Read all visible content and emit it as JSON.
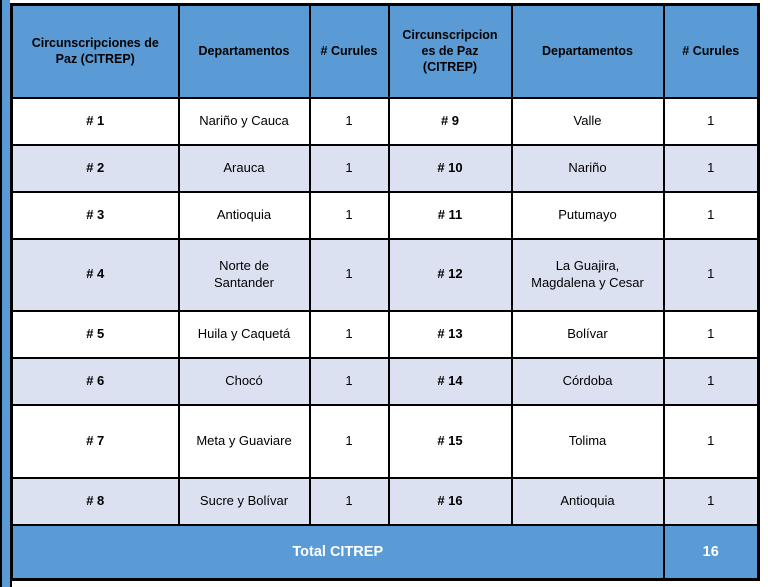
{
  "colors": {
    "header_blue": "#5B9BD5",
    "banded_row": "#DCE1F2",
    "border": "#000000",
    "total_text": "#FFFFFF"
  },
  "table": {
    "headers": [
      "Circunscripciones de Paz (CITREP)",
      "Departamentos",
      "# Curules",
      "Circunscripciones de Paz (CITREP)",
      "Departamentos",
      "# Curules"
    ],
    "rows": [
      [
        "# 1",
        "Nariño y Cauca",
        "1",
        "# 9",
        "Valle",
        "1"
      ],
      [
        "# 2",
        "Arauca",
        "1",
        "# 10",
        "Nariño",
        "1"
      ],
      [
        "# 3",
        "Antioquia",
        "1",
        "# 11",
        "Putumayo",
        "1"
      ],
      [
        "# 4",
        "Norte de Santander",
        "1",
        "# 12",
        "La Guajira, Magdalena y Cesar",
        "1"
      ],
      [
        "# 5",
        "Huila y Caquetá",
        "1",
        "# 13",
        "Bolívar",
        "1"
      ],
      [
        "# 6",
        "Chocó",
        "1",
        "# 14",
        "Córdoba",
        "1"
      ],
      [
        "# 7",
        "Meta y Guaviare",
        "1",
        "# 15",
        "Tolima",
        "1"
      ],
      [
        "# 8",
        "Sucre y Bolívar",
        "1",
        "# 16",
        "Antioquia",
        "1"
      ]
    ],
    "total_label": "Total CITREP",
    "total_value": "16"
  }
}
